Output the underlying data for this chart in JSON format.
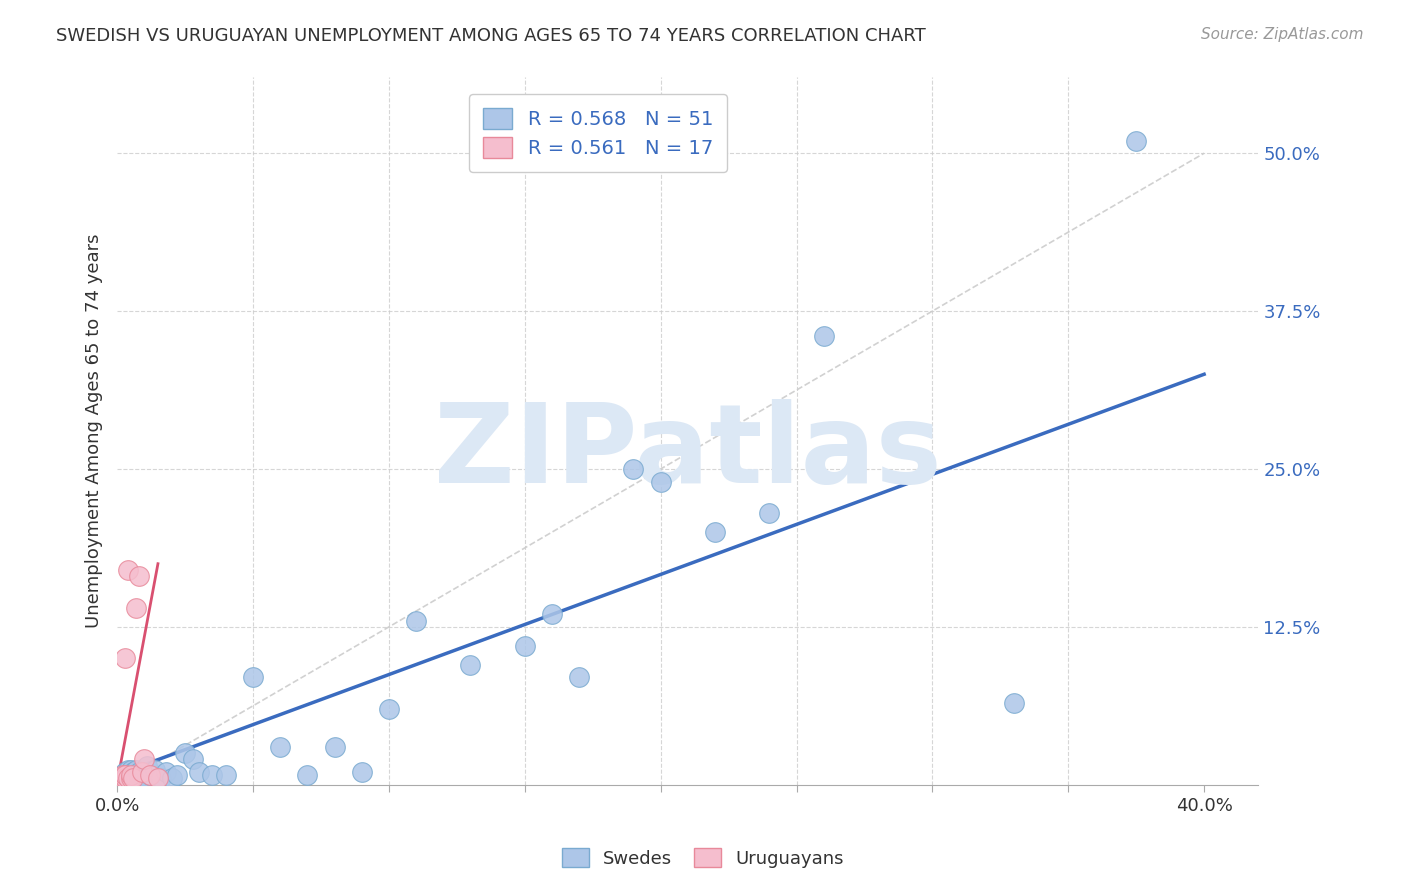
{
  "title": "SWEDISH VS URUGUAYAN UNEMPLOYMENT AMONG AGES 65 TO 74 YEARS CORRELATION CHART",
  "source": "Source: ZipAtlas.com",
  "ylabel": "Unemployment Among Ages 65 to 74 years",
  "xlim": [
    0.0,
    0.42
  ],
  "ylim": [
    0.0,
    0.56
  ],
  "right_yticks": [
    0.0,
    0.125,
    0.25,
    0.375,
    0.5
  ],
  "right_yticklabels": [
    "",
    "12.5%",
    "25.0%",
    "37.5%",
    "50.0%"
  ],
  "blue_R": 0.568,
  "blue_N": 51,
  "pink_R": 0.561,
  "pink_N": 17,
  "blue_color": "#adc6e8",
  "pink_color": "#f5bece",
  "blue_edge_color": "#7aaad0",
  "pink_edge_color": "#e8899a",
  "blue_line_color": "#3a6bbf",
  "pink_line_color": "#d95070",
  "watermark": "ZIPatlas",
  "watermark_color": "#dce8f5",
  "swedes_label": "Swedes",
  "uruguayans_label": "Uruguayans",
  "blue_x": [
    0.001,
    0.002,
    0.002,
    0.003,
    0.003,
    0.003,
    0.004,
    0.004,
    0.004,
    0.005,
    0.005,
    0.005,
    0.006,
    0.006,
    0.007,
    0.007,
    0.008,
    0.008,
    0.009,
    0.01,
    0.01,
    0.011,
    0.012,
    0.014,
    0.016,
    0.018,
    0.02,
    0.022,
    0.025,
    0.028,
    0.03,
    0.035,
    0.04,
    0.05,
    0.06,
    0.07,
    0.08,
    0.09,
    0.1,
    0.11,
    0.13,
    0.15,
    0.16,
    0.17,
    0.19,
    0.2,
    0.22,
    0.24,
    0.26,
    0.33,
    0.375
  ],
  "blue_y": [
    0.005,
    0.005,
    0.008,
    0.005,
    0.008,
    0.01,
    0.005,
    0.008,
    0.012,
    0.005,
    0.008,
    0.012,
    0.005,
    0.01,
    0.005,
    0.012,
    0.006,
    0.01,
    0.008,
    0.005,
    0.01,
    0.015,
    0.008,
    0.012,
    0.005,
    0.01,
    0.005,
    0.008,
    0.025,
    0.02,
    0.01,
    0.008,
    0.008,
    0.085,
    0.03,
    0.008,
    0.03,
    0.01,
    0.06,
    0.13,
    0.095,
    0.11,
    0.135,
    0.085,
    0.25,
    0.24,
    0.2,
    0.215,
    0.355,
    0.065,
    0.51
  ],
  "pink_x": [
    0.001,
    0.002,
    0.002,
    0.003,
    0.003,
    0.003,
    0.004,
    0.004,
    0.005,
    0.005,
    0.006,
    0.007,
    0.008,
    0.009,
    0.01,
    0.012,
    0.015
  ],
  "pink_y": [
    0.005,
    0.005,
    0.008,
    0.005,
    0.008,
    0.1,
    0.005,
    0.17,
    0.005,
    0.008,
    0.005,
    0.14,
    0.165,
    0.01,
    0.02,
    0.008,
    0.005
  ],
  "blue_line_x": [
    0.0,
    0.4
  ],
  "blue_line_y": [
    0.008,
    0.325
  ],
  "pink_line_x": [
    0.0,
    0.015
  ],
  "pink_line_y": [
    0.002,
    0.175
  ],
  "diag_line_x": [
    0.0,
    0.4
  ],
  "diag_line_y": [
    0.0,
    0.5
  ]
}
